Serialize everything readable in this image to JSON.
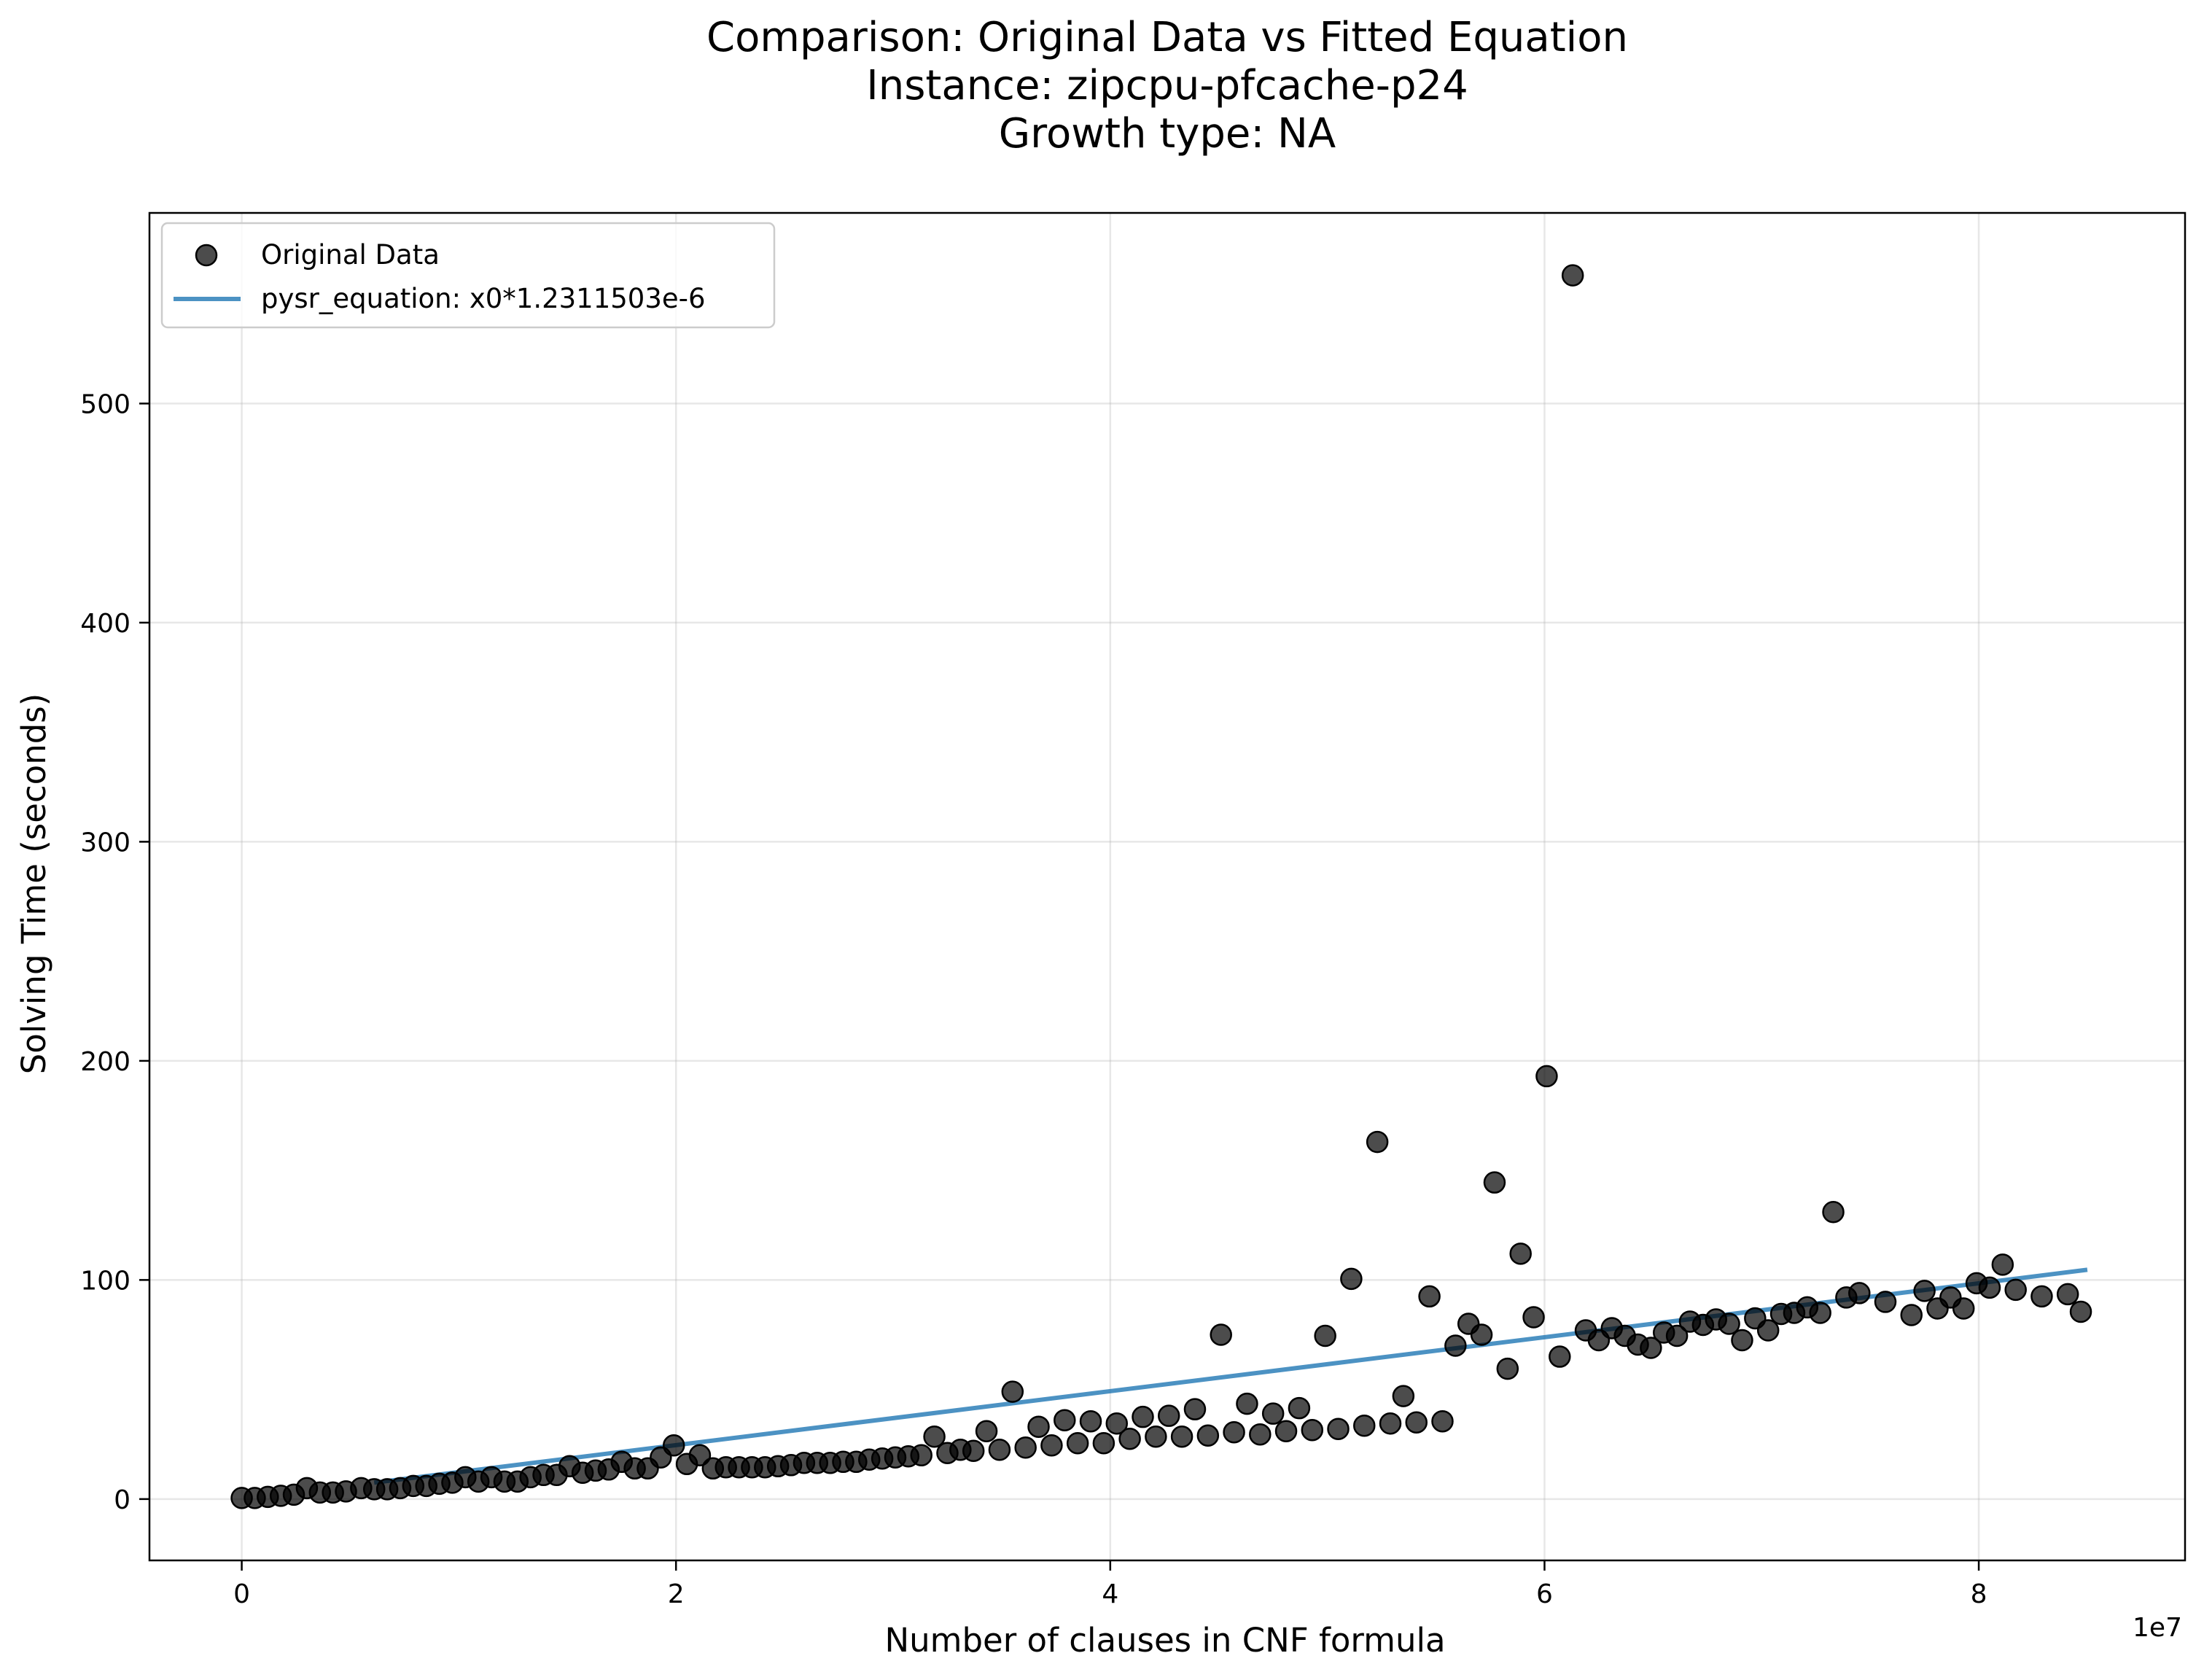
{
  "chart_data": {
    "type": "scatter",
    "title_lines": [
      "Comparison: Original Data vs Fitted Equation",
      "Instance: zipcpu-pfcache-p24",
      "Growth type: NA"
    ],
    "xlabel": "Number of clauses in CNF formula",
    "ylabel": "Solving Time (seconds)",
    "x_offset_label": "1e7",
    "xlim": [
      -4250000,
      89500000
    ],
    "ylim": [
      -28,
      587
    ],
    "x_ticks": [
      0,
      20000000,
      40000000,
      60000000,
      80000000
    ],
    "x_tick_labels": [
      "0",
      "2",
      "4",
      "6",
      "8"
    ],
    "y_ticks": [
      0,
      100,
      200,
      300,
      400,
      500
    ],
    "y_tick_labels": [
      "0",
      "100",
      "200",
      "300",
      "400",
      "500"
    ],
    "grid": true,
    "legend_position": "top-left",
    "series": [
      {
        "name": "Original Data",
        "kind": "scatter",
        "color": "#000000",
        "points": [
          [
            0,
            0.5
          ],
          [
            600000,
            0.5
          ],
          [
            1200000,
            1
          ],
          [
            1800000,
            1.5
          ],
          [
            2400000,
            2
          ],
          [
            3000000,
            5
          ],
          [
            3600000,
            3
          ],
          [
            4200000,
            3
          ],
          [
            4800000,
            3.5
          ],
          [
            5500000,
            5
          ],
          [
            6100000,
            4.5
          ],
          [
            6700000,
            4.5
          ],
          [
            7300000,
            5
          ],
          [
            7900000,
            6
          ],
          [
            8500000,
            6
          ],
          [
            9100000,
            7
          ],
          [
            9700000,
            7.5
          ],
          [
            10300000,
            10
          ],
          [
            10900000,
            8
          ],
          [
            11500000,
            10
          ],
          [
            12100000,
            8
          ],
          [
            12700000,
            8
          ],
          [
            13300000,
            10
          ],
          [
            13900000,
            11
          ],
          [
            14500000,
            11
          ],
          [
            15100000,
            15
          ],
          [
            15700000,
            12
          ],
          [
            16300000,
            13
          ],
          [
            16900000,
            13.5
          ],
          [
            17500000,
            17
          ],
          [
            18100000,
            14
          ],
          [
            18700000,
            14
          ],
          [
            19300000,
            19
          ],
          [
            19900000,
            24.5
          ],
          [
            20500000,
            16
          ],
          [
            21100000,
            20
          ],
          [
            21700000,
            14
          ],
          [
            22300000,
            14.5
          ],
          [
            22900000,
            14.5
          ],
          [
            23500000,
            14.5
          ],
          [
            24100000,
            14.5
          ],
          [
            24700000,
            15
          ],
          [
            25300000,
            15.5
          ],
          [
            25900000,
            16.5
          ],
          [
            26500000,
            16.5
          ],
          [
            27100000,
            16.5
          ],
          [
            27700000,
            17
          ],
          [
            28300000,
            17
          ],
          [
            28900000,
            18
          ],
          [
            29500000,
            18.5
          ],
          [
            30100000,
            19
          ],
          [
            30700000,
            19.5
          ],
          [
            31300000,
            20
          ],
          [
            31900000,
            28.5
          ],
          [
            32500000,
            21
          ],
          [
            33100000,
            22.5
          ],
          [
            33700000,
            22
          ],
          [
            34300000,
            31
          ],
          [
            34900000,
            22.5
          ],
          [
            35500000,
            49
          ],
          [
            36100000,
            23.5
          ],
          [
            36700000,
            33
          ],
          [
            37300000,
            24.5
          ],
          [
            37900000,
            36
          ],
          [
            38500000,
            25.5
          ],
          [
            39100000,
            35.5
          ],
          [
            39700000,
            25.5
          ],
          [
            40300000,
            34.5
          ],
          [
            40900000,
            27.5
          ],
          [
            41500000,
            37.5
          ],
          [
            42100000,
            28.5
          ],
          [
            42700000,
            38
          ],
          [
            43300000,
            28.5
          ],
          [
            43900000,
            41
          ],
          [
            44500000,
            29
          ],
          [
            45100000,
            75
          ],
          [
            45700000,
            30.5
          ],
          [
            46300000,
            43.5
          ],
          [
            46900000,
            29.5
          ],
          [
            47500000,
            39
          ],
          [
            48100000,
            31
          ],
          [
            48700000,
            41.5
          ],
          [
            49300000,
            31.5
          ],
          [
            49900000,
            74.5
          ],
          [
            50500000,
            32
          ],
          [
            51100000,
            100.5
          ],
          [
            51700000,
            33.5
          ],
          [
            52300000,
            163
          ],
          [
            52900000,
            34.5
          ],
          [
            53500000,
            47
          ],
          [
            54100000,
            35
          ],
          [
            54700000,
            92.5
          ],
          [
            55300000,
            35.5
          ],
          [
            55900000,
            70
          ],
          [
            56500000,
            80
          ],
          [
            57100000,
            75
          ],
          [
            57700000,
            144.5
          ],
          [
            58300000,
            59.5
          ],
          [
            58900000,
            112
          ],
          [
            59500000,
            83
          ],
          [
            60100000,
            193
          ],
          [
            60700000,
            65
          ],
          [
            61300000,
            558.5
          ],
          [
            61900000,
            77
          ],
          [
            62500000,
            72.5
          ],
          [
            63100000,
            78
          ],
          [
            63700000,
            74.5
          ],
          [
            64300000,
            70.5
          ],
          [
            64900000,
            69
          ],
          [
            65500000,
            76
          ],
          [
            66100000,
            74.5
          ],
          [
            66700000,
            81
          ],
          [
            67300000,
            79.5
          ],
          [
            67900000,
            82
          ],
          [
            68500000,
            80
          ],
          [
            69100000,
            72.5
          ],
          [
            69700000,
            82.5
          ],
          [
            70300000,
            77
          ],
          [
            70900000,
            84.5
          ],
          [
            71500000,
            85
          ],
          [
            72100000,
            87.5
          ],
          [
            72700000,
            85
          ],
          [
            73300000,
            131
          ],
          [
            73900000,
            92
          ],
          [
            74500000,
            94
          ],
          [
            75700000,
            90
          ],
          [
            76900000,
            84
          ],
          [
            77500000,
            95
          ],
          [
            78100000,
            87
          ],
          [
            78700000,
            92
          ],
          [
            79300000,
            87
          ],
          [
            79900000,
            98.5
          ],
          [
            80500000,
            96.5
          ],
          [
            81100000,
            107
          ],
          [
            81700000,
            95.5
          ],
          [
            82900000,
            92.5
          ],
          [
            84100000,
            93.5
          ],
          [
            84700000,
            85.5
          ]
        ]
      },
      {
        "name": "pysr_equation: x0*1.2311503e-6",
        "kind": "line",
        "color": "#1f77b4",
        "coefficient": 1.2311503e-06,
        "x_range": [
          6100000,
          85000000
        ]
      }
    ]
  }
}
